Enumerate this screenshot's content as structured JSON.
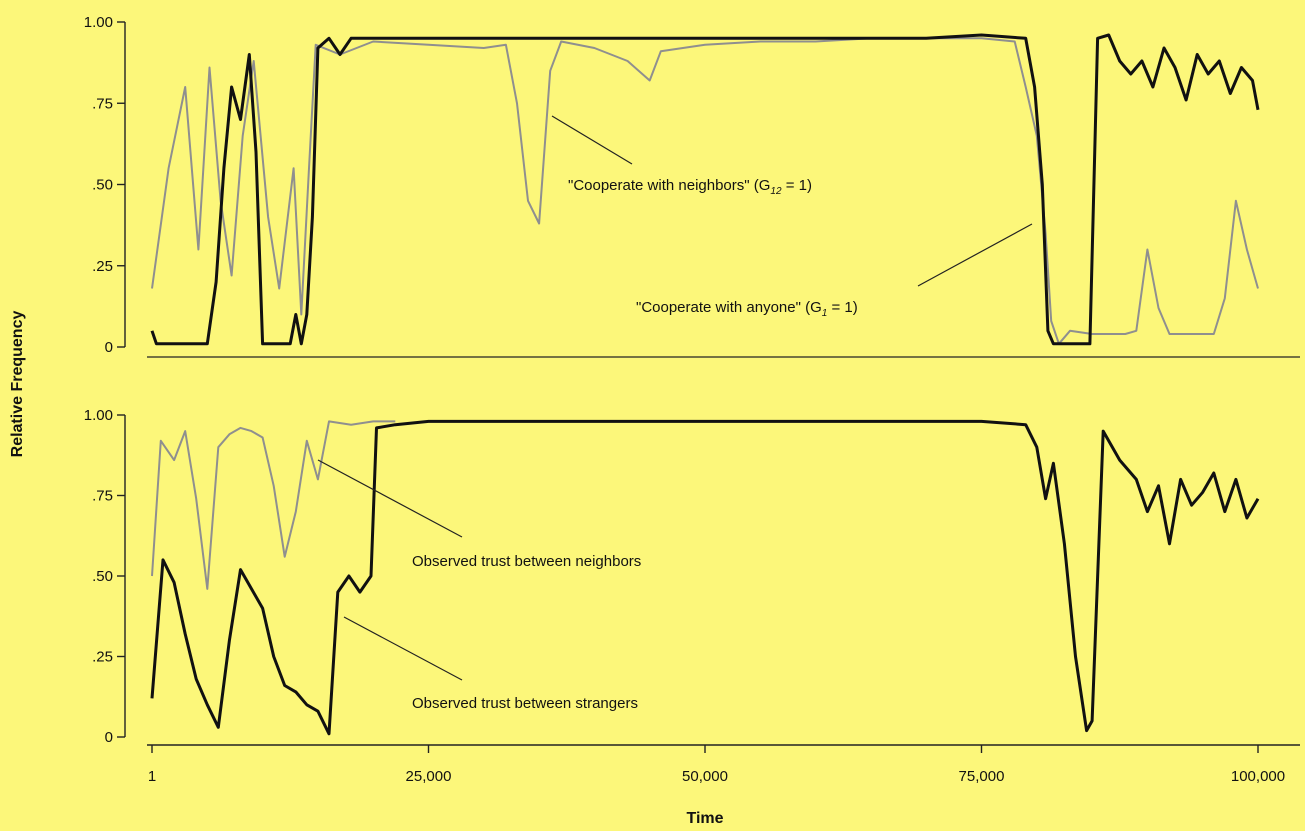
{
  "chart_data": [
    {
      "type": "line",
      "panel": "top",
      "xlim": [
        1,
        100000
      ],
      "ylim": [
        0,
        1
      ],
      "yticks": [
        "0",
        ".25",
        ".50",
        ".75",
        "1.00"
      ],
      "xticks": [],
      "colors": {
        "neighbors": "#8f8f8f",
        "anyone": "#111111"
      },
      "annotations": [
        {
          "text": "\"Cooperate with neighbors\" (G",
          "sub": "12",
          "suffix": " = 1)",
          "target": "neighbors"
        },
        {
          "text": "\"Cooperate with anyone\" (G",
          "sub": "1",
          "suffix": " = 1)",
          "target": "anyone"
        }
      ],
      "series": [
        {
          "id": "neighbors",
          "points": [
            [
              1,
              0.18
            ],
            [
              1500,
              0.55
            ],
            [
              3000,
              0.8
            ],
            [
              4200,
              0.3
            ],
            [
              5200,
              0.86
            ],
            [
              6200,
              0.45
            ],
            [
              7200,
              0.22
            ],
            [
              8200,
              0.65
            ],
            [
              9200,
              0.88
            ],
            [
              10500,
              0.4
            ],
            [
              11500,
              0.18
            ],
            [
              12800,
              0.55
            ],
            [
              13500,
              0.1
            ],
            [
              14200,
              0.55
            ],
            [
              14800,
              0.93
            ],
            [
              17000,
              0.9
            ],
            [
              20000,
              0.94
            ],
            [
              25000,
              0.93
            ],
            [
              30000,
              0.92
            ],
            [
              32000,
              0.93
            ],
            [
              33000,
              0.75
            ],
            [
              34000,
              0.45
            ],
            [
              35000,
              0.38
            ],
            [
              36000,
              0.85
            ],
            [
              37000,
              0.94
            ],
            [
              40000,
              0.92
            ],
            [
              43000,
              0.88
            ],
            [
              45000,
              0.82
            ],
            [
              46000,
              0.91
            ],
            [
              50000,
              0.93
            ],
            [
              55000,
              0.94
            ],
            [
              60000,
              0.94
            ],
            [
              65000,
              0.95
            ],
            [
              70000,
              0.95
            ],
            [
              75000,
              0.95
            ],
            [
              78000,
              0.94
            ],
            [
              79000,
              0.8
            ],
            [
              80000,
              0.65
            ],
            [
              80800,
              0.35
            ],
            [
              81300,
              0.08
            ],
            [
              82000,
              0.01
            ],
            [
              83000,
              0.05
            ],
            [
              85000,
              0.04
            ],
            [
              88000,
              0.04
            ],
            [
              89000,
              0.05
            ],
            [
              90000,
              0.3
            ],
            [
              91000,
              0.12
            ],
            [
              92000,
              0.04
            ],
            [
              94000,
              0.04
            ],
            [
              96000,
              0.04
            ],
            [
              97000,
              0.15
            ],
            [
              98000,
              0.45
            ],
            [
              99000,
              0.3
            ],
            [
              100000,
              0.18
            ]
          ]
        },
        {
          "id": "anyone",
          "points": [
            [
              1,
              0.05
            ],
            [
              400,
              0.01
            ],
            [
              5000,
              0.01
            ],
            [
              5800,
              0.2
            ],
            [
              6500,
              0.55
            ],
            [
              7200,
              0.8
            ],
            [
              8000,
              0.7
            ],
            [
              8800,
              0.9
            ],
            [
              9400,
              0.6
            ],
            [
              10000,
              0.01
            ],
            [
              11500,
              0.01
            ],
            [
              12500,
              0.01
            ],
            [
              13000,
              0.1
            ],
            [
              13500,
              0.01
            ],
            [
              14000,
              0.1
            ],
            [
              14500,
              0.4
            ],
            [
              15000,
              0.92
            ],
            [
              16000,
              0.95
            ],
            [
              17000,
              0.9
            ],
            [
              18000,
              0.95
            ],
            [
              20000,
              0.95
            ],
            [
              25000,
              0.95
            ],
            [
              30000,
              0.95
            ],
            [
              40000,
              0.95
            ],
            [
              50000,
              0.95
            ],
            [
              60000,
              0.95
            ],
            [
              70000,
              0.95
            ],
            [
              75000,
              0.96
            ],
            [
              79000,
              0.95
            ],
            [
              79800,
              0.8
            ],
            [
              80500,
              0.5
            ],
            [
              81000,
              0.05
            ],
            [
              81500,
              0.01
            ],
            [
              84000,
              0.01
            ],
            [
              84800,
              0.01
            ],
            [
              85500,
              0.95
            ],
            [
              86500,
              0.96
            ],
            [
              87500,
              0.88
            ],
            [
              88500,
              0.84
            ],
            [
              89500,
              0.88
            ],
            [
              90500,
              0.8
            ],
            [
              91500,
              0.92
            ],
            [
              92500,
              0.86
            ],
            [
              93500,
              0.76
            ],
            [
              94500,
              0.9
            ],
            [
              95500,
              0.84
            ],
            [
              96500,
              0.88
            ],
            [
              97500,
              0.78
            ],
            [
              98500,
              0.86
            ],
            [
              99500,
              0.82
            ],
            [
              100000,
              0.73
            ]
          ]
        }
      ]
    },
    {
      "type": "line",
      "panel": "bottom",
      "xlim": [
        1,
        100000
      ],
      "ylim": [
        0,
        1
      ],
      "yticks": [
        "0",
        ".25",
        ".50",
        ".75",
        "1.00"
      ],
      "xticks": [
        "1",
        "25,000",
        "50,000",
        "75,000",
        "100,000"
      ],
      "xlabel": "Time",
      "ylabel": "Relative Frequency",
      "colors": {
        "neighbors": "#8f8f8f",
        "strangers": "#111111"
      },
      "annotations": [
        {
          "text": "Observed trust between neighbors",
          "target": "neighbors"
        },
        {
          "text": "Observed trust between strangers",
          "target": "strangers"
        }
      ],
      "series": [
        {
          "id": "neighbors",
          "points": [
            [
              1,
              0.5
            ],
            [
              800,
              0.92
            ],
            [
              2000,
              0.86
            ],
            [
              3000,
              0.95
            ],
            [
              4000,
              0.74
            ],
            [
              5000,
              0.46
            ],
            [
              6000,
              0.9
            ],
            [
              7000,
              0.94
            ],
            [
              8000,
              0.96
            ],
            [
              9000,
              0.95
            ],
            [
              10000,
              0.93
            ],
            [
              11000,
              0.78
            ],
            [
              12000,
              0.56
            ],
            [
              13000,
              0.7
            ],
            [
              14000,
              0.92
            ],
            [
              15000,
              0.8
            ],
            [
              16000,
              0.98
            ],
            [
              18000,
              0.97
            ],
            [
              20000,
              0.98
            ],
            [
              22000,
              0.98
            ]
          ]
        },
        {
          "id": "strangers",
          "points": [
            [
              1,
              0.12
            ],
            [
              1000,
              0.55
            ],
            [
              2000,
              0.48
            ],
            [
              3000,
              0.32
            ],
            [
              4000,
              0.18
            ],
            [
              5000,
              0.1
            ],
            [
              6000,
              0.03
            ],
            [
              7000,
              0.3
            ],
            [
              8000,
              0.52
            ],
            [
              9000,
              0.46
            ],
            [
              10000,
              0.4
            ],
            [
              11000,
              0.25
            ],
            [
              12000,
              0.16
            ],
            [
              13000,
              0.14
            ],
            [
              14000,
              0.1
            ],
            [
              15000,
              0.08
            ],
            [
              16000,
              0.01
            ],
            [
              16800,
              0.45
            ],
            [
              17800,
              0.5
            ],
            [
              18800,
              0.45
            ],
            [
              19800,
              0.5
            ],
            [
              20300,
              0.96
            ],
            [
              22000,
              0.97
            ],
            [
              25000,
              0.98
            ],
            [
              30000,
              0.98
            ],
            [
              40000,
              0.98
            ],
            [
              50000,
              0.98
            ],
            [
              60000,
              0.98
            ],
            [
              70000,
              0.98
            ],
            [
              75000,
              0.98
            ],
            [
              79000,
              0.97
            ],
            [
              80000,
              0.9
            ],
            [
              80800,
              0.74
            ],
            [
              81500,
              0.85
            ],
            [
              82500,
              0.6
            ],
            [
              83500,
              0.25
            ],
            [
              84500,
              0.02
            ],
            [
              85000,
              0.05
            ],
            [
              86000,
              0.95
            ],
            [
              87500,
              0.86
            ],
            [
              89000,
              0.8
            ],
            [
              90000,
              0.7
            ],
            [
              91000,
              0.78
            ],
            [
              92000,
              0.6
            ],
            [
              93000,
              0.8
            ],
            [
              94000,
              0.72
            ],
            [
              95000,
              0.76
            ],
            [
              96000,
              0.82
            ],
            [
              97000,
              0.7
            ],
            [
              98000,
              0.8
            ],
            [
              99000,
              0.68
            ],
            [
              100000,
              0.74
            ]
          ]
        }
      ]
    }
  ]
}
